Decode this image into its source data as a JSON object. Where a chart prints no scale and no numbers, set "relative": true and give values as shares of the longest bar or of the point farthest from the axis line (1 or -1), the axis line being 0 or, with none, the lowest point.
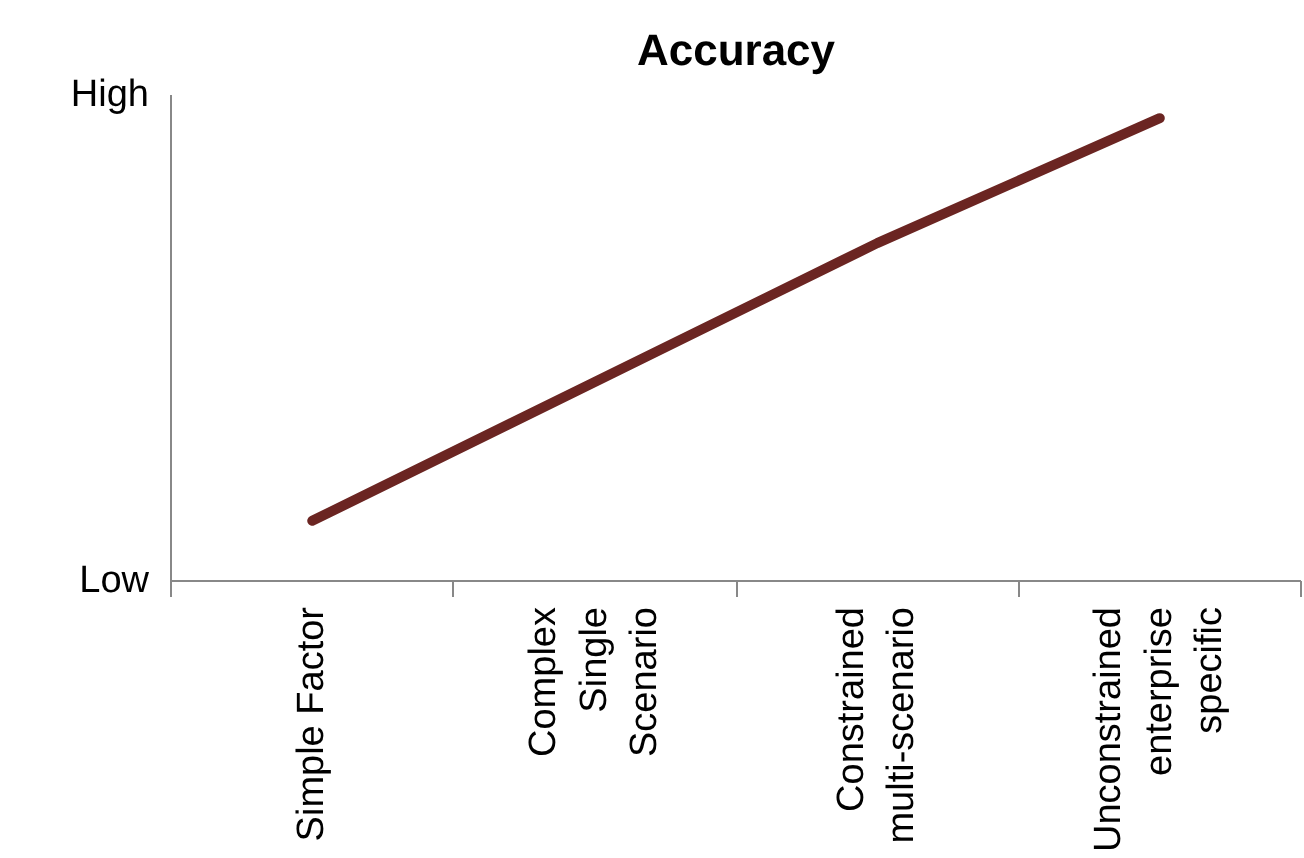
{
  "chart_data": {
    "type": "line",
    "title": "Accuracy",
    "relative": true,
    "categories": [
      "Simple Factor",
      "Complex\nSingle\nScenario",
      "Constrained\nmulti-scenario",
      "Unconstrained\nenterprise\nspecific"
    ],
    "series": [
      {
        "color": "#6b2522",
        "values": [
          0.13,
          0.43,
          0.73,
          1
        ]
      }
    ],
    "annotations": [
      "Low",
      "High"
    ],
    "grid": false,
    "marker": "none",
    "line_style": "solid"
  }
}
